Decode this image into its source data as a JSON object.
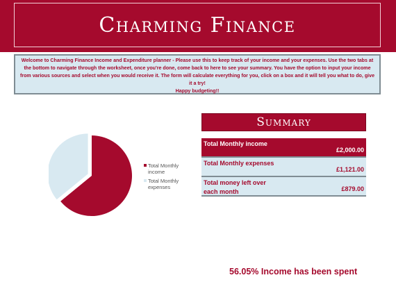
{
  "header": {
    "title": "Charming Finance"
  },
  "intro_text": "Welcome to Charming Finance Income and Expenditure planner - Please use this to keep track of your income and your expenses.  Use the two tabs at the bottom to navigate through the worksheet, once you're done, come back to here to see your summary.  You have the option to input your income from various sources and select when you would receive it.  The form will calculate everything for you, click on a box and it will tell you what to do, give it a try!",
  "intro_closing": "Happy budgeting!!",
  "summary": {
    "title": "Summary",
    "rows": [
      {
        "label": "Total Monthly income",
        "value": "£2,000.00"
      },
      {
        "label": "Total Monthly expenses",
        "value": "£1,121.00"
      },
      {
        "label": "Total money left over each month",
        "value": "£879.00"
      }
    ]
  },
  "chart_data": {
    "type": "pie",
    "categories": [
      "Total Monthly income",
      "Total Monthly expenses"
    ],
    "values": [
      2000,
      1121
    ],
    "colors": [
      "#a50a2d",
      "#d8e9f1"
    ],
    "legend_position": "right"
  },
  "footer": {
    "percent": "56.05%",
    "text": "Income has been spent"
  }
}
